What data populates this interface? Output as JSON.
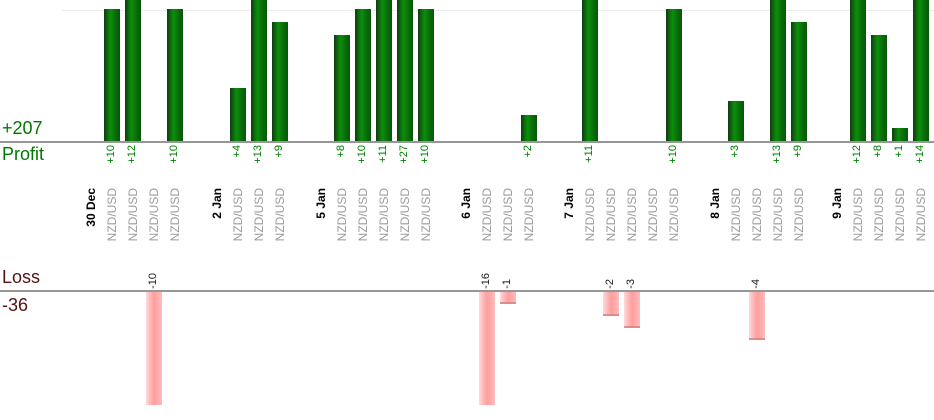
{
  "chart_data": {
    "type": "bar",
    "title": "",
    "panels": {
      "profit": {
        "axis_label": "Profit",
        "total_label": "+207",
        "total_value": 207,
        "gridline_value": 10,
        "bar_color": "#0a8c0a",
        "value_label_color": "#008000",
        "text_color": "#007800"
      },
      "loss": {
        "axis_label": "Loss",
        "total_label": "-36",
        "total_value": -36,
        "bar_color": "#ffa6a6",
        "value_label_color": "#1a1a1a",
        "text_color": "#571212"
      }
    },
    "x_axis": {
      "point_symbol": "NZD/USD",
      "date_label_color": "#000000",
      "symbol_label_color": "#9b9b9b"
    },
    "groups": [
      {
        "date": "30 Dec",
        "trades": [
          {
            "symbol": "NZD/USD",
            "value": 10,
            "label": "+10"
          },
          {
            "symbol": "NZD/USD",
            "value": 12,
            "label": "+12"
          },
          {
            "symbol": "NZD/USD",
            "value": -10,
            "label": "-10"
          },
          {
            "symbol": "NZD/USD",
            "value": 10,
            "label": "+10"
          }
        ]
      },
      {
        "date": "2 Jan",
        "trades": [
          {
            "symbol": "NZD/USD",
            "value": 4,
            "label": "+4"
          },
          {
            "symbol": "NZD/USD",
            "value": 13,
            "label": "+13"
          },
          {
            "symbol": "NZD/USD",
            "value": 9,
            "label": "+9"
          }
        ]
      },
      {
        "date": "5 Jan",
        "trades": [
          {
            "symbol": "NZD/USD",
            "value": 8,
            "label": "+8"
          },
          {
            "symbol": "NZD/USD",
            "value": 10,
            "label": "+10"
          },
          {
            "symbol": "NZD/USD",
            "value": 11,
            "label": "+11"
          },
          {
            "symbol": "NZD/USD",
            "value": 27,
            "label": "+27"
          },
          {
            "symbol": "NZD/USD",
            "value": 10,
            "label": "+10"
          }
        ]
      },
      {
        "date": "6 Jan",
        "trades": [
          {
            "symbol": "NZD/USD",
            "value": -16,
            "label": "-16"
          },
          {
            "symbol": "NZD/USD",
            "value": -1,
            "label": "-1"
          },
          {
            "symbol": "NZD/USD",
            "value": 2,
            "label": "+2"
          }
        ]
      },
      {
        "date": "7 Jan",
        "trades": [
          {
            "symbol": "NZD/USD",
            "value": 11,
            "label": "+11"
          },
          {
            "symbol": "NZD/USD",
            "value": -2,
            "label": "-2"
          },
          {
            "symbol": "NZD/USD",
            "value": -3,
            "label": "-3"
          },
          {
            "symbol": "NZD/USD",
            "value": 0,
            "label": ""
          },
          {
            "symbol": "NZD/USD",
            "value": 10,
            "label": "+10"
          }
        ]
      },
      {
        "date": "8 Jan",
        "trades": [
          {
            "symbol": "NZD/USD",
            "value": 3,
            "label": "+3"
          },
          {
            "symbol": "NZD/USD",
            "value": -4,
            "label": "-4"
          },
          {
            "symbol": "NZD/USD",
            "value": 13,
            "label": "+13"
          },
          {
            "symbol": "NZD/USD",
            "value": 9,
            "label": "+9"
          }
        ]
      },
      {
        "date": "9 Jan",
        "trades": [
          {
            "symbol": "NZD/USD",
            "value": 12,
            "label": "+12"
          },
          {
            "symbol": "NZD/USD",
            "value": 8,
            "label": "+8"
          },
          {
            "symbol": "NZD/USD",
            "value": 1,
            "label": "+1"
          },
          {
            "symbol": "NZD/USD",
            "value": 14,
            "label": "+14"
          }
        ]
      }
    ]
  }
}
